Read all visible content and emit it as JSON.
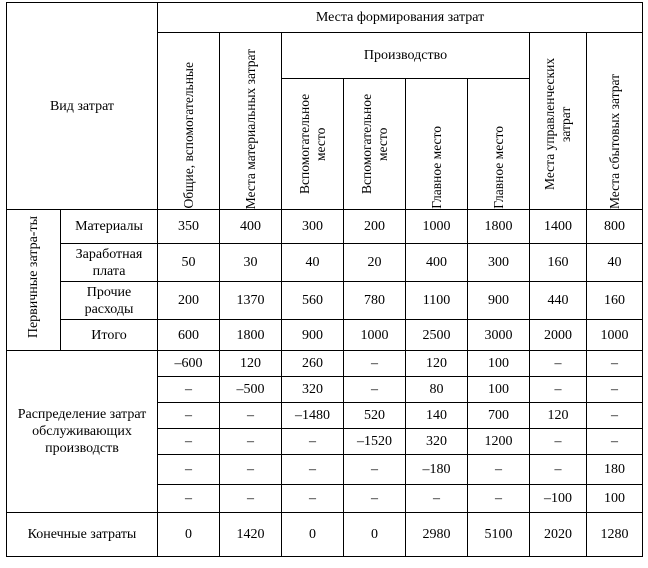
{
  "header": {
    "kind_label": "Вид затрат",
    "places_label": "Места  формирования затрат",
    "production_label": "Производство",
    "columns": [
      "Общие, вспомогательные",
      "Места материальных затрат",
      "Вспомогательное место",
      "Вспомогательное место",
      "Главное место",
      "Главное место",
      "Места управленческих затрат",
      "Места сбытовых затрат"
    ]
  },
  "primary": {
    "group_label": "Первичные затра-ты",
    "rows": [
      {
        "label": "Материалы",
        "cells": [
          "350",
          "400",
          "300",
          "200",
          "1000",
          "1800",
          "1400",
          "800"
        ]
      },
      {
        "label": "Заработная плата",
        "cells": [
          "50",
          "30",
          "40",
          "20",
          "400",
          "300",
          "160",
          "40"
        ]
      },
      {
        "label": "Прочие расходы",
        "cells": [
          "200",
          "1370",
          "560",
          "780",
          "1100",
          "900",
          "440",
          "160"
        ]
      },
      {
        "label": "Итого",
        "cells": [
          "600",
          "1800",
          "900",
          "1000",
          "2500",
          "3000",
          "2000",
          "1000"
        ]
      }
    ]
  },
  "distribution": {
    "label": "Распределение затрат обслуживающих производств",
    "rows": [
      [
        "–600",
        "120",
        "260",
        "–",
        "120",
        "100",
        "–",
        "–"
      ],
      [
        "–",
        "–500",
        "320",
        "–",
        "80",
        "100",
        "–",
        "–"
      ],
      [
        "–",
        "–",
        "–1480",
        "520",
        "140",
        "700",
        "120",
        "–"
      ],
      [
        "–",
        "–",
        "–",
        "–1520",
        "320",
        "1200",
        "–",
        "–"
      ],
      [
        "–",
        "–",
        "–",
        "–",
        "–180",
        "–",
        "–",
        "180"
      ],
      [
        "–",
        "–",
        "–",
        "–",
        "–",
        "–",
        "–100",
        "100"
      ]
    ]
  },
  "final": {
    "label": "Конечные затраты",
    "cells": [
      "0",
      "1420",
      "0",
      "0",
      "2980",
      "5100",
      "2020",
      "1280"
    ]
  }
}
